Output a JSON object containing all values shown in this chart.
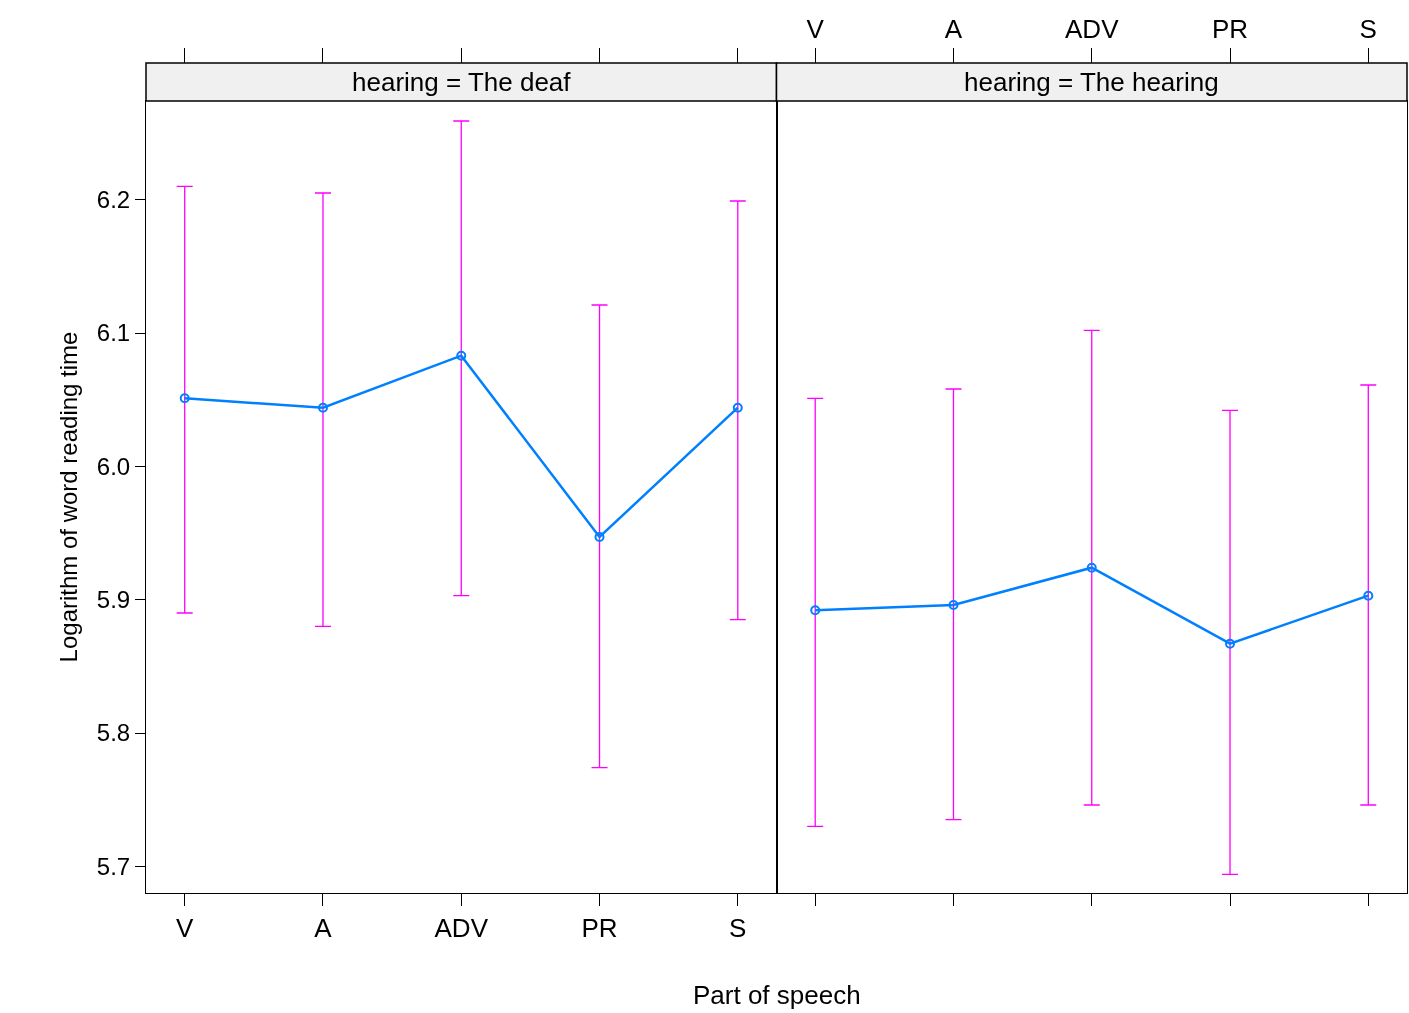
{
  "chart_data": [
    {
      "type": "line",
      "title": "hearing = The deaf",
      "xlabel": "Part of speech",
      "ylabel": "Logarithm of word reading time",
      "categories": [
        "V",
        "A",
        "ADV",
        "PR",
        "S"
      ],
      "series": [
        {
          "color": "#0080ff",
          "values": [
            6.051,
            6.044,
            6.083,
            5.947,
            6.044
          ],
          "errors": [
            [
              5.89,
              6.21
            ],
            [
              5.88,
              6.205
            ],
            [
              5.903,
              6.259
            ],
            [
              5.774,
              6.121
            ],
            [
              5.885,
              6.199
            ]
          ]
        }
      ],
      "ylim": [
        5.68,
        6.274
      ],
      "yticks": [
        5.7,
        5.8,
        5.9,
        {
          "value": 6.0,
          "label": "6.0"
        },
        6.1,
        6.2
      ],
      "marker": "circle",
      "grid": false
    },
    {
      "type": "line",
      "title": "hearing = The hearing",
      "categories": [
        "V",
        "A",
        "ADV",
        "PR",
        "S"
      ],
      "series": [
        {
          "color": "#0080ff",
          "values": [
            5.892,
            5.896,
            5.924,
            5.867,
            5.903
          ],
          "errors": [
            [
              5.73,
              6.051
            ],
            [
              5.735,
              6.058
            ],
            [
              5.746,
              6.102
            ],
            [
              5.694,
              6.042
            ],
            [
              5.746,
              6.061
            ]
          ]
        }
      ],
      "ylim": [
        5.68,
        6.274
      ],
      "yticks": [
        5.7,
        5.8,
        5.9,
        6.0,
        6.1,
        6.2
      ],
      "marker": "circle",
      "grid": false,
      "tick_labels": "x"
    }
  ]
}
